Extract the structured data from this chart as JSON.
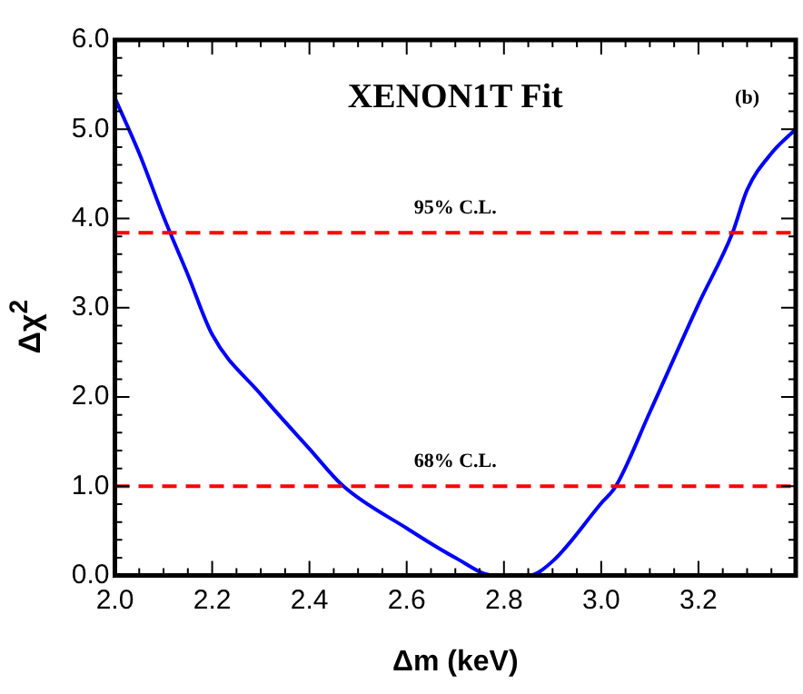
{
  "chart_data": {
    "type": "line",
    "title": "XENON1T Fit",
    "xlabel": "Δm (keV)",
    "ylabel": "Δχ$^{2}$",
    "annotations": [
      "(b)"
    ],
    "x": [
      2.0,
      2.05,
      2.1,
      2.15,
      2.2,
      2.3,
      2.4,
      2.47,
      2.6,
      2.7,
      2.78,
      2.85,
      2.9,
      3.0,
      3.03,
      3.1,
      3.2,
      3.27,
      3.3,
      3.35,
      3.4
    ],
    "series": [
      {
        "color": "#0000ff",
        "values": [
          5.35,
          4.73,
          4.02,
          3.37,
          2.7,
          2.03,
          1.42,
          1.0,
          0.53,
          0.2,
          0,
          0,
          0.16,
          0.81,
          1.0,
          1.83,
          3.04,
          3.84,
          4.32,
          4.73,
          5.0
        ]
      }
    ],
    "ref_lines": [
      {
        "axis": "y",
        "value": 3.84,
        "label": "95% C.L.",
        "color": "#ff0000",
        "line_style": "dashed"
      },
      {
        "axis": "y",
        "value": 1.0,
        "label": "68% C.L.",
        "color": "#ff0000",
        "line_style": "dashed"
      }
    ],
    "xlim": [
      2.0,
      3.4
    ],
    "xticks": [
      {
        "value": 2.0,
        "label": "2.0"
      },
      {
        "value": 2.2,
        "label": "2.2"
      },
      {
        "value": 2.4,
        "label": "2.4"
      },
      {
        "value": 2.6,
        "label": "2.6"
      },
      {
        "value": 2.8,
        "label": "2.8"
      },
      {
        "value": 3.0,
        "label": "3.0"
      },
      {
        "value": 3.2,
        "label": "3.2"
      }
    ],
    "ylim": [
      0,
      6
    ],
    "yticks": [
      {
        "value": 0,
        "label": "0.0"
      },
      {
        "value": 1,
        "label": "1.0"
      },
      {
        "value": 2,
        "label": "2.0"
      },
      {
        "value": 3,
        "label": "3.0"
      },
      {
        "value": 4,
        "label": "4.0"
      },
      {
        "value": 5,
        "label": "5.0"
      },
      {
        "value": 6,
        "label": "6.0"
      }
    ],
    "grid": false,
    "legend": false,
    "marker": "none",
    "line_style": "solid"
  }
}
